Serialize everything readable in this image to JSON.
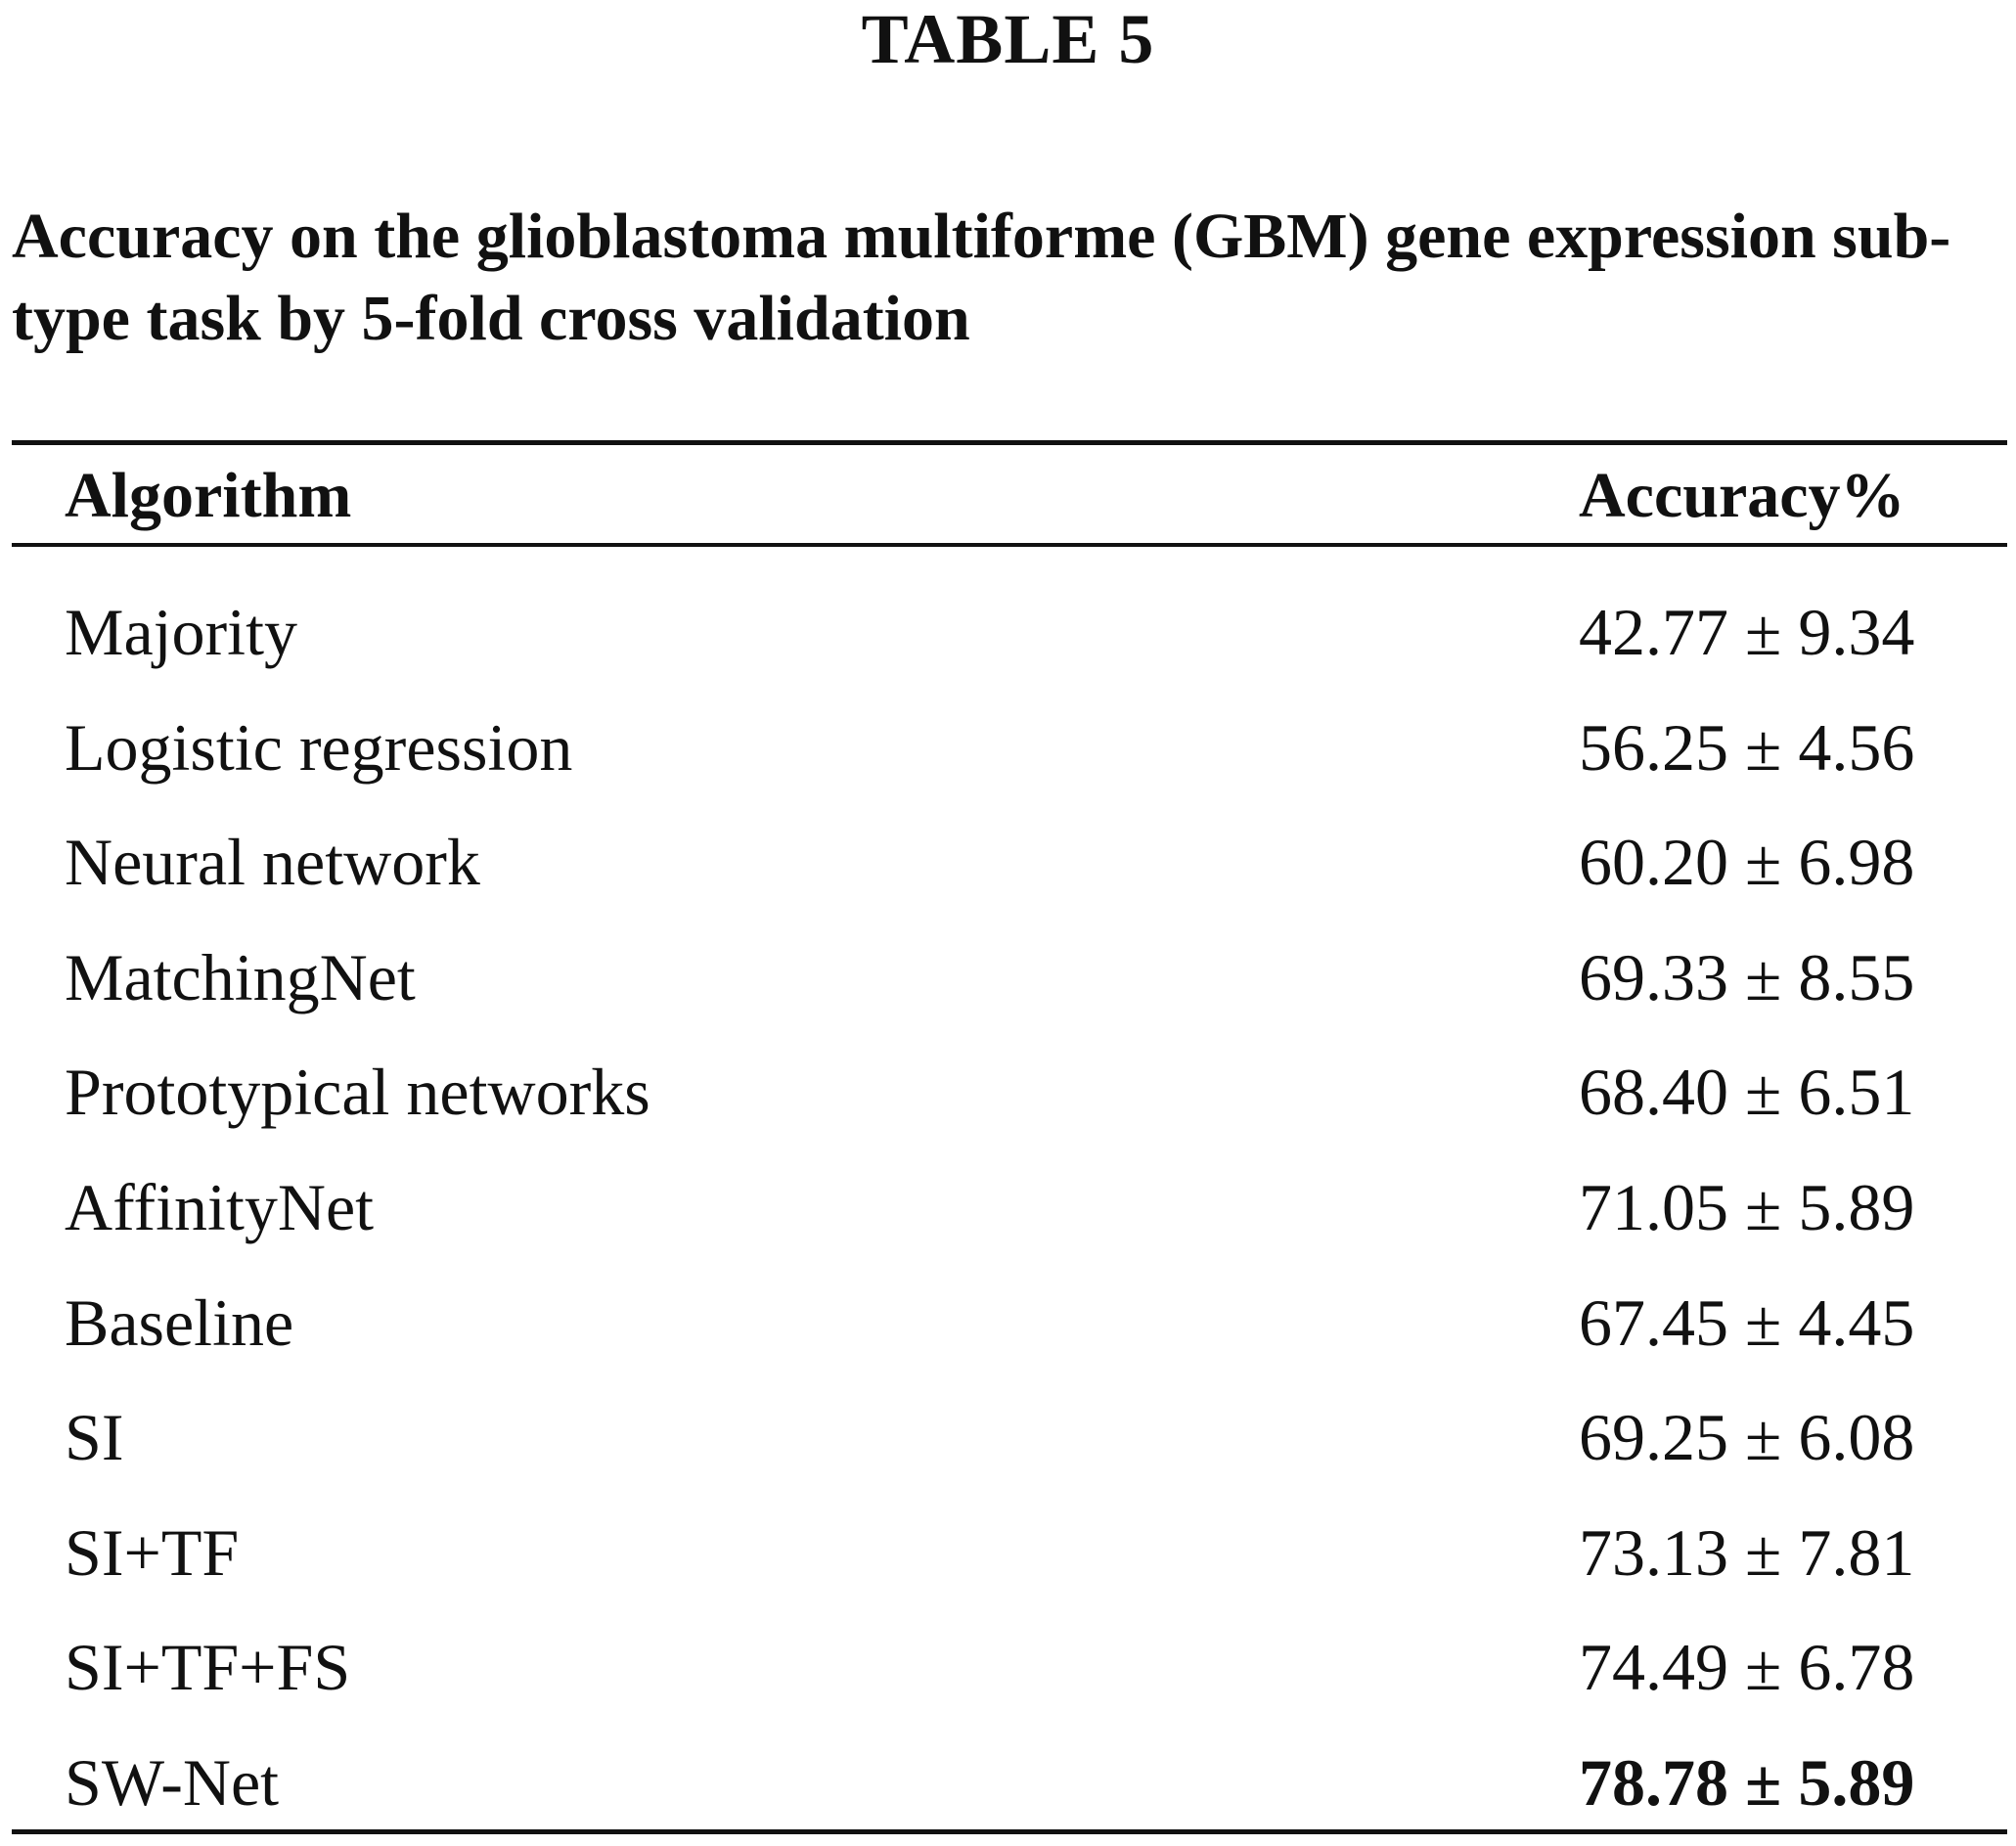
{
  "table_label": "TABLE 5",
  "caption": "Accuracy on the glioblastoma multiforme (GBM) gene expression sub-type task by 5-fold cross validation",
  "columns": {
    "algorithm": "Algorithm",
    "accuracy": "Accuracy%"
  },
  "rows": [
    {
      "algorithm": "Majority",
      "accuracy": "42.77 ± 9.34",
      "bold": false
    },
    {
      "algorithm": "Logistic regression",
      "accuracy": "56.25 ± 4.56",
      "bold": false
    },
    {
      "algorithm": "Neural network",
      "accuracy": "60.20 ± 6.98",
      "bold": false
    },
    {
      "algorithm": "MatchingNet",
      "accuracy": "69.33 ± 8.55",
      "bold": false
    },
    {
      "algorithm": "Prototypical networks",
      "accuracy": "68.40 ± 6.51",
      "bold": false
    },
    {
      "algorithm": "AffinityNet",
      "accuracy": "71.05 ± 5.89",
      "bold": false
    },
    {
      "algorithm": "Baseline",
      "accuracy": "67.45 ± 4.45",
      "bold": false
    },
    {
      "algorithm": "SI",
      "accuracy": "69.25 ± 6.08",
      "bold": false
    },
    {
      "algorithm": "SI+TF",
      "accuracy": "73.13 ± 7.81",
      "bold": false
    },
    {
      "algorithm": "SI+TF+FS",
      "accuracy": "74.49 ± 6.78",
      "bold": false
    },
    {
      "algorithm": "SW-Net",
      "accuracy": "78.78 ± 5.89",
      "bold": true
    }
  ]
}
